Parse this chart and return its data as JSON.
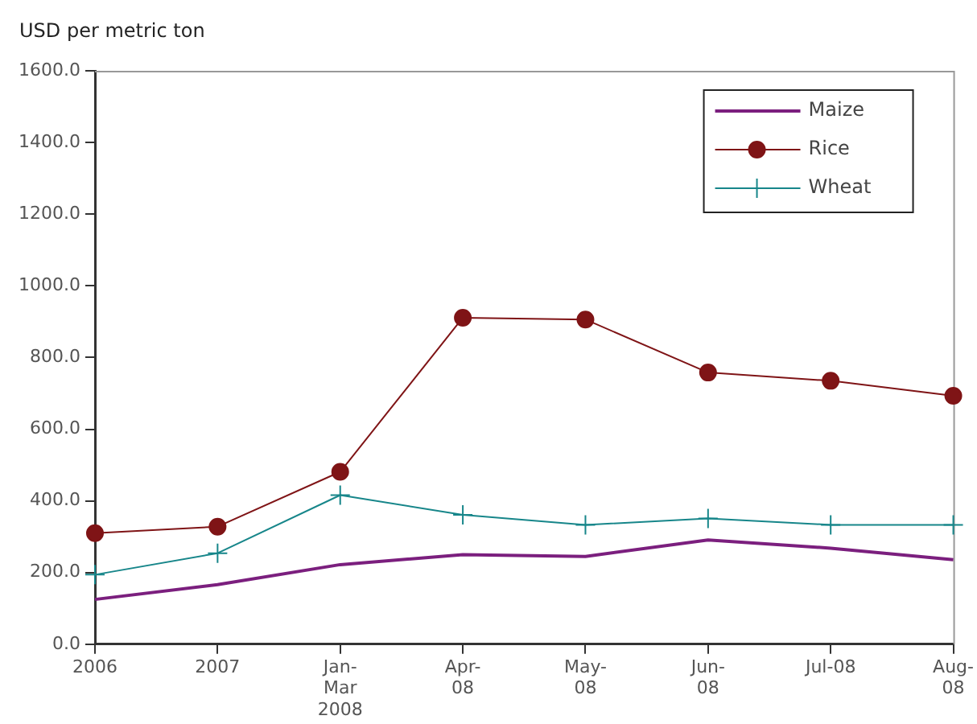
{
  "chart_data": {
    "type": "line",
    "ylabel": "USD per metric ton",
    "categories": [
      "2006",
      "2007",
      "Jan-\nMar\n2008",
      "Apr-\n08",
      "May-\n08",
      "Jun-\n08",
      "Jul-08",
      "Aug-\n08"
    ],
    "series": [
      {
        "name": "Maize",
        "color": "#7b1f7e",
        "marker": "none",
        "values": [
          125,
          166,
          222,
          250,
          245,
          291,
          268,
          236
        ]
      },
      {
        "name": "Rice",
        "color": "#7f1416",
        "marker": "circle",
        "values": [
          310,
          328,
          481,
          911,
          906,
          758,
          735,
          693
        ]
      },
      {
        "name": "Wheat",
        "color": "#17868a",
        "marker": "cross",
        "values": [
          194,
          254,
          416,
          361,
          333,
          351,
          333,
          333
        ]
      }
    ],
    "ylim": [
      0,
      1600
    ],
    "yticks": [
      {
        "value": 0,
        "label": "0.0"
      },
      {
        "value": 200,
        "label": "200.0"
      },
      {
        "value": 400,
        "label": "400.0"
      },
      {
        "value": 600,
        "label": "600.0"
      },
      {
        "value": 800,
        "label": "800.0"
      },
      {
        "value": 1000,
        "label": "1000.0"
      },
      {
        "value": 1200,
        "label": "1200.0"
      },
      {
        "value": 1400,
        "label": "1400.0"
      },
      {
        "value": 1600,
        "label": "1600.0"
      }
    ],
    "grid": false,
    "legend": "top right",
    "line_style": "solid"
  }
}
